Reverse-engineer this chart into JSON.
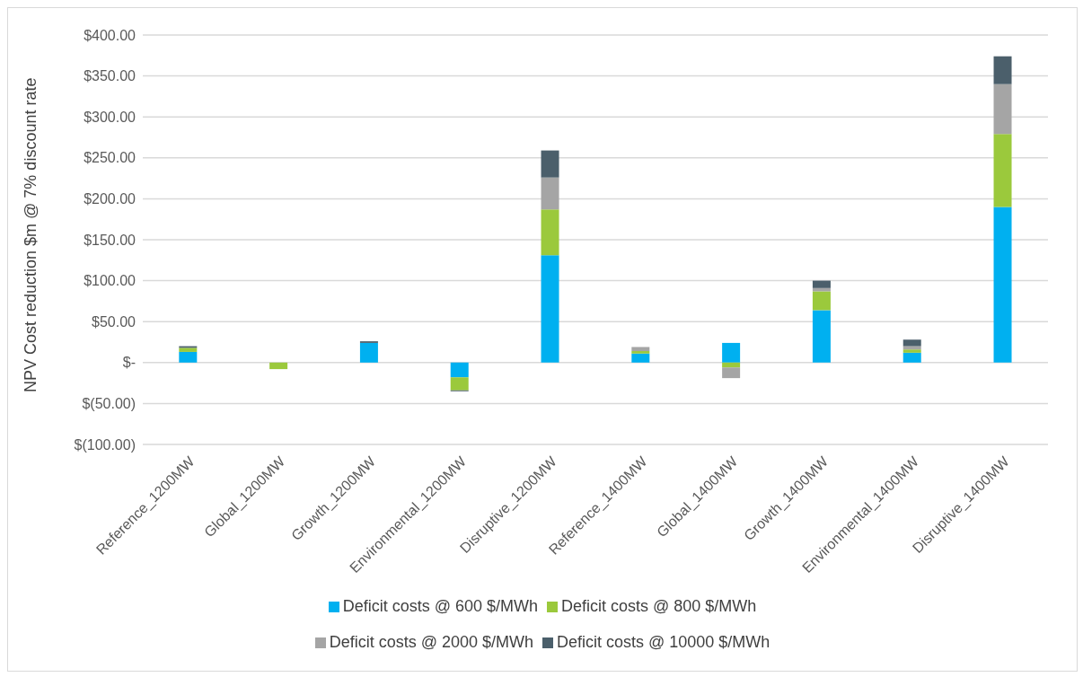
{
  "chart_data": {
    "type": "bar",
    "stacked": true,
    "ylabel": "NPV Cost reduction $m @ 7% discount rate",
    "categories": [
      "Reference_1200MW",
      "Global_1200MW",
      "Growth_1200MW",
      "Environmental_1200MW",
      "Disruptive_1200MW",
      "Reference_1400MW",
      "Global_1400MW",
      "Growth_1400MW",
      "Environmental_1400MW",
      "Disruptive_1400MW"
    ],
    "series": [
      {
        "name": "Deficit costs @ 600 $/MWh",
        "color": "#00b0f0",
        "values": [
          13,
          null,
          24,
          -18,
          131,
          11,
          24,
          64,
          12,
          190
        ]
      },
      {
        "name": "Deficit costs @ 800 $/MWh",
        "color": "#9bc93c",
        "values": [
          5,
          -8,
          null,
          -16,
          56,
          3,
          -6,
          23,
          4,
          89
        ]
      },
      {
        "name": "Deficit costs @ 2000 $/MWh",
        "color": "#a5a5a5",
        "values": [
          null,
          null,
          null,
          0,
          39,
          5,
          -13,
          4,
          4,
          61
        ]
      },
      {
        "name": "Deficit costs @ 10000 $/MWh",
        "color": "#4b5f6b",
        "values": [
          2,
          0,
          2,
          -1,
          33,
          0,
          0,
          9,
          8,
          34
        ]
      }
    ],
    "ylim": [
      -100,
      400
    ],
    "yticks": [
      {
        "value": -100,
        "label": "$(100.00)"
      },
      {
        "value": -50,
        "label": "$(50.00)"
      },
      {
        "value": 0,
        "label": "$-"
      },
      {
        "value": 50,
        "label": "$50.00"
      },
      {
        "value": 100,
        "label": "$100.00"
      },
      {
        "value": 150,
        "label": "$150.00"
      },
      {
        "value": 200,
        "label": "$200.00"
      },
      {
        "value": 250,
        "label": "$250.00"
      },
      {
        "value": 300,
        "label": "$300.00"
      },
      {
        "value": 350,
        "label": "$350.00"
      },
      {
        "value": 400,
        "label": "$400.00"
      }
    ],
    "grid": "y",
    "legend": "bottom"
  }
}
